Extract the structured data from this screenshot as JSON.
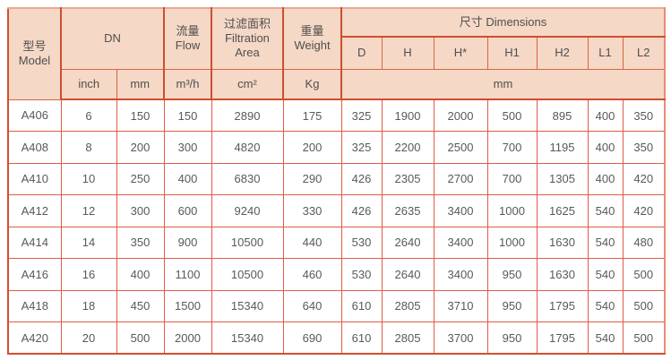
{
  "header": {
    "model": {
      "zh": "型号",
      "en": "Model"
    },
    "dn": {
      "label": "DN",
      "inch": "inch",
      "mm": "mm"
    },
    "flow": {
      "zh": "流量",
      "en": "Flow",
      "unit": "m³/h"
    },
    "filtration": {
      "zh": "过滤面积",
      "en_line1": "Filtration",
      "en_line2": "Area",
      "unit": "cm²"
    },
    "weight": {
      "zh": "重量",
      "en": "Weight",
      "unit": "Kg"
    },
    "dimensions": {
      "label": "尺寸 Dimensions",
      "columns": [
        "D",
        "H",
        "H*",
        "H1",
        "H2",
        "L1",
        "L2"
      ],
      "unit": "mm"
    }
  },
  "rows": [
    {
      "model": "A406",
      "values": [
        "6",
        "150",
        "150",
        "2890",
        "175",
        "325",
        "1900",
        "2000",
        "500",
        "895",
        "400",
        "350"
      ]
    },
    {
      "model": "A408",
      "values": [
        "8",
        "200",
        "300",
        "4820",
        "200",
        "325",
        "2200",
        "2500",
        "700",
        "1195",
        "400",
        "350"
      ]
    },
    {
      "model": "A410",
      "values": [
        "10",
        "250",
        "400",
        "6830",
        "290",
        "426",
        "2305",
        "2700",
        "700",
        "1305",
        "400",
        "420"
      ]
    },
    {
      "model": "A412",
      "values": [
        "12",
        "300",
        "600",
        "9240",
        "330",
        "426",
        "2635",
        "3400",
        "1000",
        "1625",
        "540",
        "420"
      ]
    },
    {
      "model": "A414",
      "values": [
        "14",
        "350",
        "900",
        "10500",
        "440",
        "530",
        "2640",
        "3400",
        "1000",
        "1630",
        "540",
        "480"
      ]
    },
    {
      "model": "A416",
      "values": [
        "16",
        "400",
        "1100",
        "10500",
        "460",
        "530",
        "2640",
        "3400",
        "950",
        "1630",
        "540",
        "500"
      ]
    },
    {
      "model": "A418",
      "values": [
        "18",
        "450",
        "1500",
        "15340",
        "640",
        "610",
        "2805",
        "3710",
        "950",
        "1795",
        "540",
        "500"
      ]
    },
    {
      "model": "A420",
      "values": [
        "20",
        "500",
        "2000",
        "15340",
        "690",
        "610",
        "2805",
        "3700",
        "950",
        "1795",
        "540",
        "500"
      ]
    }
  ],
  "colors": {
    "header_bg": "#f5d8c6",
    "grid_data": "#e15a4b",
    "grid_header": "#d66744",
    "grid_thick": "#cf4e2e",
    "text": "#595959"
  }
}
